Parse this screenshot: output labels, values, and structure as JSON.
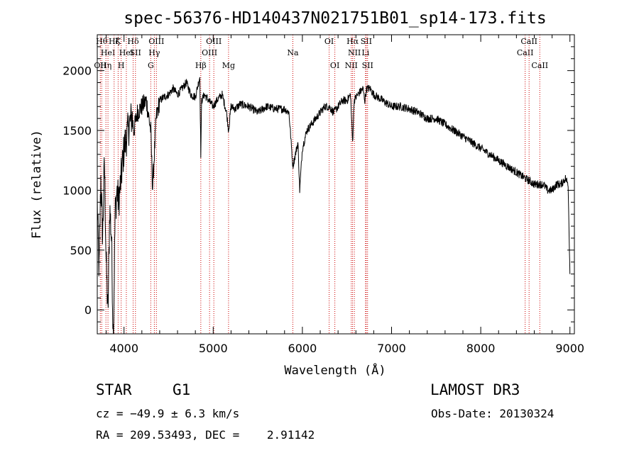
{
  "chart_data": {
    "type": "line",
    "title": "spec-56376-HD140437N021751B01_sp14-173.fits",
    "xlabel": "Wavelength (Å)",
    "ylabel": "Flux (relative)",
    "xlim": [
      3700,
      9050
    ],
    "ylim": [
      -200,
      2300
    ],
    "xticks": [
      4000,
      5000,
      6000,
      7000,
      8000,
      9000
    ],
    "yticks": [
      0,
      500,
      1000,
      1500,
      2000
    ],
    "grid": false,
    "line_color": "#000000",
    "marker_color": "#cc0000",
    "series": [
      {
        "x": [
          3700,
          3720,
          3740,
          3760,
          3780,
          3800,
          3820,
          3840,
          3860,
          3880,
          3900,
          3920,
          3940,
          3960,
          3980,
          4000,
          4030,
          4060,
          4090,
          4110,
          4150,
          4200,
          4250,
          4300,
          4320,
          4340,
          4360,
          4400,
          4450,
          4500,
          4550,
          4600,
          4650,
          4700,
          4750,
          4800,
          4850,
          4861,
          4870,
          4900,
          4950,
          5000,
          5050,
          5100,
          5150,
          5172,
          5200,
          5250,
          5300,
          5400,
          5500,
          5600,
          5700,
          5800,
          5850,
          5893,
          5950,
          5970,
          6000,
          6050,
          6100,
          6150,
          6200,
          6250,
          6300,
          6350,
          6400,
          6450,
          6500,
          6540,
          6563,
          6580,
          6620,
          6680,
          6700,
          6720,
          6760,
          6800,
          6900,
          7000,
          7100,
          7200,
          7300,
          7400,
          7500,
          7600,
          7700,
          7800,
          7900,
          8000,
          8100,
          8200,
          8300,
          8400,
          8498,
          8542,
          8600,
          8662,
          8700,
          8750,
          8800,
          8850,
          8900,
          8950,
          8980,
          9000
        ],
        "y": [
          900,
          300,
          1100,
          600,
          1250,
          400,
          -50,
          850,
          600,
          -300,
          800,
          1000,
          900,
          1050,
          1200,
          1350,
          1450,
          1550,
          1620,
          1500,
          1650,
          1700,
          1750,
          1500,
          1020,
          1300,
          1600,
          1750,
          1780,
          1800,
          1850,
          1800,
          1850,
          1900,
          1800,
          1780,
          1950,
          1300,
          1750,
          1800,
          1750,
          1700,
          1760,
          1800,
          1650,
          1500,
          1700,
          1680,
          1720,
          1700,
          1650,
          1700,
          1680,
          1680,
          1650,
          1200,
          1400,
          1000,
          1350,
          1500,
          1550,
          1600,
          1650,
          1700,
          1700,
          1650,
          1700,
          1750,
          1750,
          1800,
          1400,
          1750,
          1800,
          1850,
          1750,
          1850,
          1850,
          1800,
          1750,
          1700,
          1700,
          1680,
          1650,
          1600,
          1600,
          1550,
          1500,
          1450,
          1400,
          1350,
          1300,
          1250,
          1200,
          1150,
          1100,
          1080,
          1050,
          1050,
          1050,
          1000,
          1000,
          1050,
          1050,
          1100,
          1050,
          300
        ]
      }
    ],
    "line_markers": [
      {
        "x": 3734,
        "label": "OII",
        "row": 3
      },
      {
        "x": 3750,
        "label": "Hθ",
        "row": 1
      },
      {
        "x": 3797,
        "label": "Hη",
        "row": 3
      },
      {
        "x": 3820,
        "label": "HeI",
        "row": 2
      },
      {
        "x": 3889,
        "label": "Hζ",
        "row": 1
      },
      {
        "x": 3934,
        "label": "K",
        "row": 1
      },
      {
        "x": 3968,
        "label": "H",
        "row": 3
      },
      {
        "x": 4026,
        "label": "HeI",
        "row": 2
      },
      {
        "x": 4102,
        "label": "Hδ",
        "row": 1
      },
      {
        "x": 4128,
        "label": "SII",
        "row": 2
      },
      {
        "x": 4300,
        "label": "G",
        "row": 3
      },
      {
        "x": 4340,
        "label": "Hγ",
        "row": 2
      },
      {
        "x": 4363,
        "label": "OIII",
        "row": 1
      },
      {
        "x": 4861,
        "label": "Hβ",
        "row": 3
      },
      {
        "x": 4959,
        "label": "OIII",
        "row": 2
      },
      {
        "x": 5007,
        "label": "OIII",
        "row": 1
      },
      {
        "x": 5172,
        "label": "Mg",
        "row": 3
      },
      {
        "x": 5893,
        "label": "Na",
        "row": 2
      },
      {
        "x": 6300,
        "label": "OI",
        "row": 1
      },
      {
        "x": 6364,
        "label": "OI",
        "row": 3
      },
      {
        "x": 6548,
        "label": "NII",
        "row": 3
      },
      {
        "x": 6563,
        "label": "Hα",
        "row": 1
      },
      {
        "x": 6583,
        "label": "NII",
        "row": 2
      },
      {
        "x": 6708,
        "label": "Li",
        "row": 2
      },
      {
        "x": 6716,
        "label": "SII",
        "row": 1
      },
      {
        "x": 6731,
        "label": "SII",
        "row": 3
      },
      {
        "x": 8498,
        "label": "CaII",
        "row": 2
      },
      {
        "x": 8542,
        "label": "CaII",
        "row": 1
      },
      {
        "x": 8662,
        "label": "CaII",
        "row": 3
      }
    ]
  },
  "info": {
    "class": "STAR",
    "subclass": "G1",
    "survey": "LAMOST DR3",
    "cz": "cz = −49.9 ± 6.3 km/s",
    "obs_date": "Obs-Date: 20130324",
    "radec": "RA = 209.53493, DEC =    2.91142"
  }
}
